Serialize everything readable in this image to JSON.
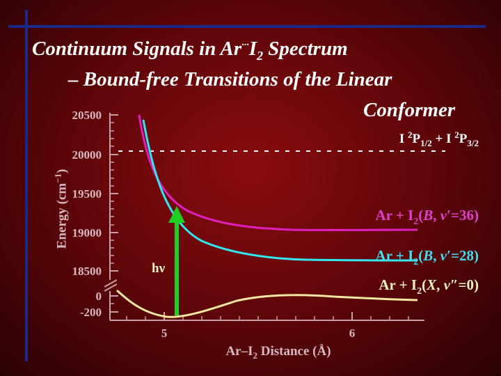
{
  "title": {
    "line1_prefix": "Continuum Signals in Ar",
    "line1_dots": "···",
    "line1_i": "I",
    "line1_sub": "2",
    "line1_suffix": " Spectrum",
    "line2": "– Bound-free Transitions of the Linear",
    "line3": "Conformer"
  },
  "axes": {
    "ylabel_prefix": "Energy (cm",
    "ylabel_sup": "−1",
    "ylabel_suffix": ")",
    "xlabel_prefix": "Ar–I",
    "xlabel_sub": "2",
    "xlabel_suffix": " Distance (Å)",
    "y_ticks_upper": [
      "20500",
      "20000",
      "19500",
      "19000",
      "18500"
    ],
    "y_ticks_lower": [
      "0",
      "-200"
    ],
    "x_ticks": [
      "5",
      "6"
    ]
  },
  "labels": {
    "dissociation": {
      "a": "I ",
      "a_sup": "2",
      "b": "P",
      "b_sub": "1/2",
      "c": " + I ",
      "c_sup": "2",
      "d": "P",
      "d_sub": "3/2"
    },
    "b36": {
      "a": "Ar + I",
      "sub": "2",
      "b": "(",
      "state": "B",
      "c": ", ",
      "v": "v",
      "prime": "′",
      "d": "=36)"
    },
    "b28": {
      "a": "Ar + I",
      "sub": "2",
      "b": "(",
      "state": "B",
      "c": ", ",
      "v": "v",
      "prime": "′",
      "d": "=28)"
    },
    "x0": {
      "a": "Ar + I",
      "sub": "2",
      "b": "(",
      "state": "X",
      "c": ", ",
      "v": "v",
      "prime": "″",
      "d": "=0)"
    },
    "hv": "hν"
  },
  "colors": {
    "background": "#6a060a",
    "decor_lines": "#1a2a8a",
    "title": "#ffffff",
    "axis_text": "#d8b8c0",
    "b36_curve": "#e020c0",
    "b36_label": "#e040d0",
    "b28_curve": "#30e8f0",
    "b28_label": "#40e0f0",
    "x_curve": "#f0e8a0",
    "x_label": "#f0f0c0",
    "dissociation_line": "#ffffff",
    "arrow": "#20d020"
  }
}
